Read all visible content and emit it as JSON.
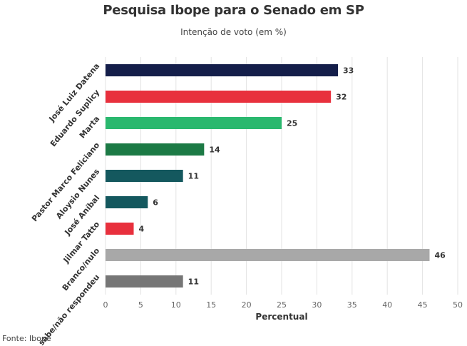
{
  "source": "Fonte: Ibope",
  "colors": {
    "grid": "#e3e3e3",
    "axis_text": "#666666",
    "label_text": "#333333"
  },
  "chart_data": {
    "type": "bar",
    "orientation": "horizontal",
    "title": "Pesquisa Ibope para o Senado em SP",
    "subtitle": "Intenção de voto (em %)",
    "xlabel": "Percentual",
    "ylabel": "",
    "xlim": [
      0,
      50
    ],
    "xticks": [
      0,
      5,
      10,
      15,
      20,
      25,
      30,
      35,
      40,
      45,
      50
    ],
    "grid": true,
    "categories": [
      "José Luiz Datena",
      "Eduardo Suplicy",
      "Marta",
      "Pastor Marco Feliciano",
      "Aloysio Nunes",
      "José Aníbal",
      "Jilmar Tatto",
      "Branco/nulo",
      "Não sabe/não respondeu"
    ],
    "values": [
      33,
      32,
      25,
      14,
      11,
      6,
      4,
      46,
      11
    ],
    "colors": [
      "#141e4a",
      "#e8303d",
      "#2ab86e",
      "#1c7a45",
      "#14585e",
      "#14585e",
      "#e8303d",
      "#a8a8a8",
      "#767676"
    ]
  }
}
